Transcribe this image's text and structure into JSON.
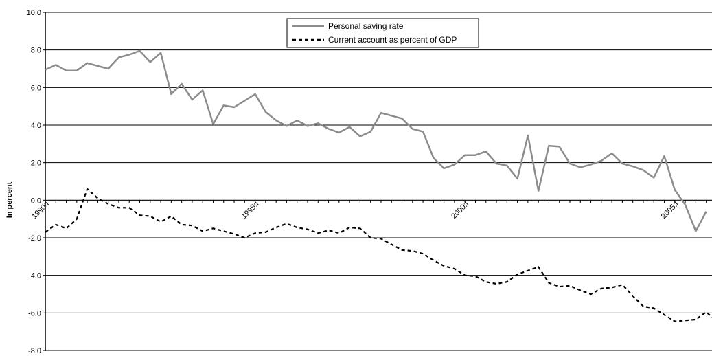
{
  "chart_data": {
    "type": "line",
    "ylabel": "In percent",
    "ylim": [
      -8.0,
      10.0
    ],
    "y_tick_labels": [
      "10.0",
      "8.0",
      "6.0",
      "4.0",
      "2.0",
      "0.0",
      "-2.0",
      "-4.0",
      "-6.0",
      "-8.0"
    ],
    "x_tick_labels": [
      "1990:I",
      "1995:I",
      "2000:I",
      "2005:I"
    ],
    "grid": true,
    "legend_position": "top-center",
    "colors": {
      "saving": "#8c8c8c",
      "current_account": "#000000"
    },
    "series": [
      {
        "name": "Personal saving rate",
        "style": "solid",
        "values": [
          6.95,
          7.2,
          6.9,
          6.9,
          7.3,
          7.15,
          7.0,
          7.6,
          7.75,
          7.95,
          7.35,
          7.85,
          5.65,
          6.2,
          5.35,
          5.85,
          4.05,
          5.05,
          4.95,
          5.3,
          5.65,
          4.7,
          4.25,
          3.95,
          4.25,
          3.95,
          4.1,
          3.8,
          3.6,
          3.9,
          3.4,
          3.65,
          4.65,
          4.5,
          4.35,
          3.8,
          3.65,
          2.25,
          1.7,
          1.9,
          2.4,
          2.4,
          2.6,
          1.95,
          1.85,
          1.15,
          3.45,
          0.5,
          2.9,
          2.85,
          1.95,
          1.75,
          1.9,
          2.1,
          2.5,
          1.95,
          1.8,
          1.6,
          1.2,
          2.35,
          0.55,
          -0.25,
          -1.65,
          -0.6
        ]
      },
      {
        "name": "Current account as percent of GDP",
        "style": "dashed",
        "values": [
          -1.7,
          -1.3,
          -1.5,
          -1.0,
          0.6,
          0.1,
          -0.2,
          -0.4,
          -0.4,
          -0.8,
          -0.85,
          -1.15,
          -0.85,
          -1.3,
          -1.35,
          -1.65,
          -1.5,
          -1.65,
          -1.8,
          -2.0,
          -1.75,
          -1.7,
          -1.45,
          -1.25,
          -1.45,
          -1.55,
          -1.75,
          -1.6,
          -1.75,
          -1.45,
          -1.5,
          -2.0,
          -2.05,
          -2.35,
          -2.65,
          -2.7,
          -2.85,
          -3.2,
          -3.5,
          -3.65,
          -4.0,
          -4.05,
          -4.35,
          -4.45,
          -4.35,
          -3.95,
          -3.75,
          -3.55,
          -4.4,
          -4.6,
          -4.55,
          -4.8,
          -5.0,
          -4.7,
          -4.65,
          -4.5,
          -5.1,
          -5.65,
          -5.75,
          -6.1,
          -6.45,
          -6.4,
          -6.35,
          -5.95,
          -6.45
        ]
      }
    ]
  }
}
